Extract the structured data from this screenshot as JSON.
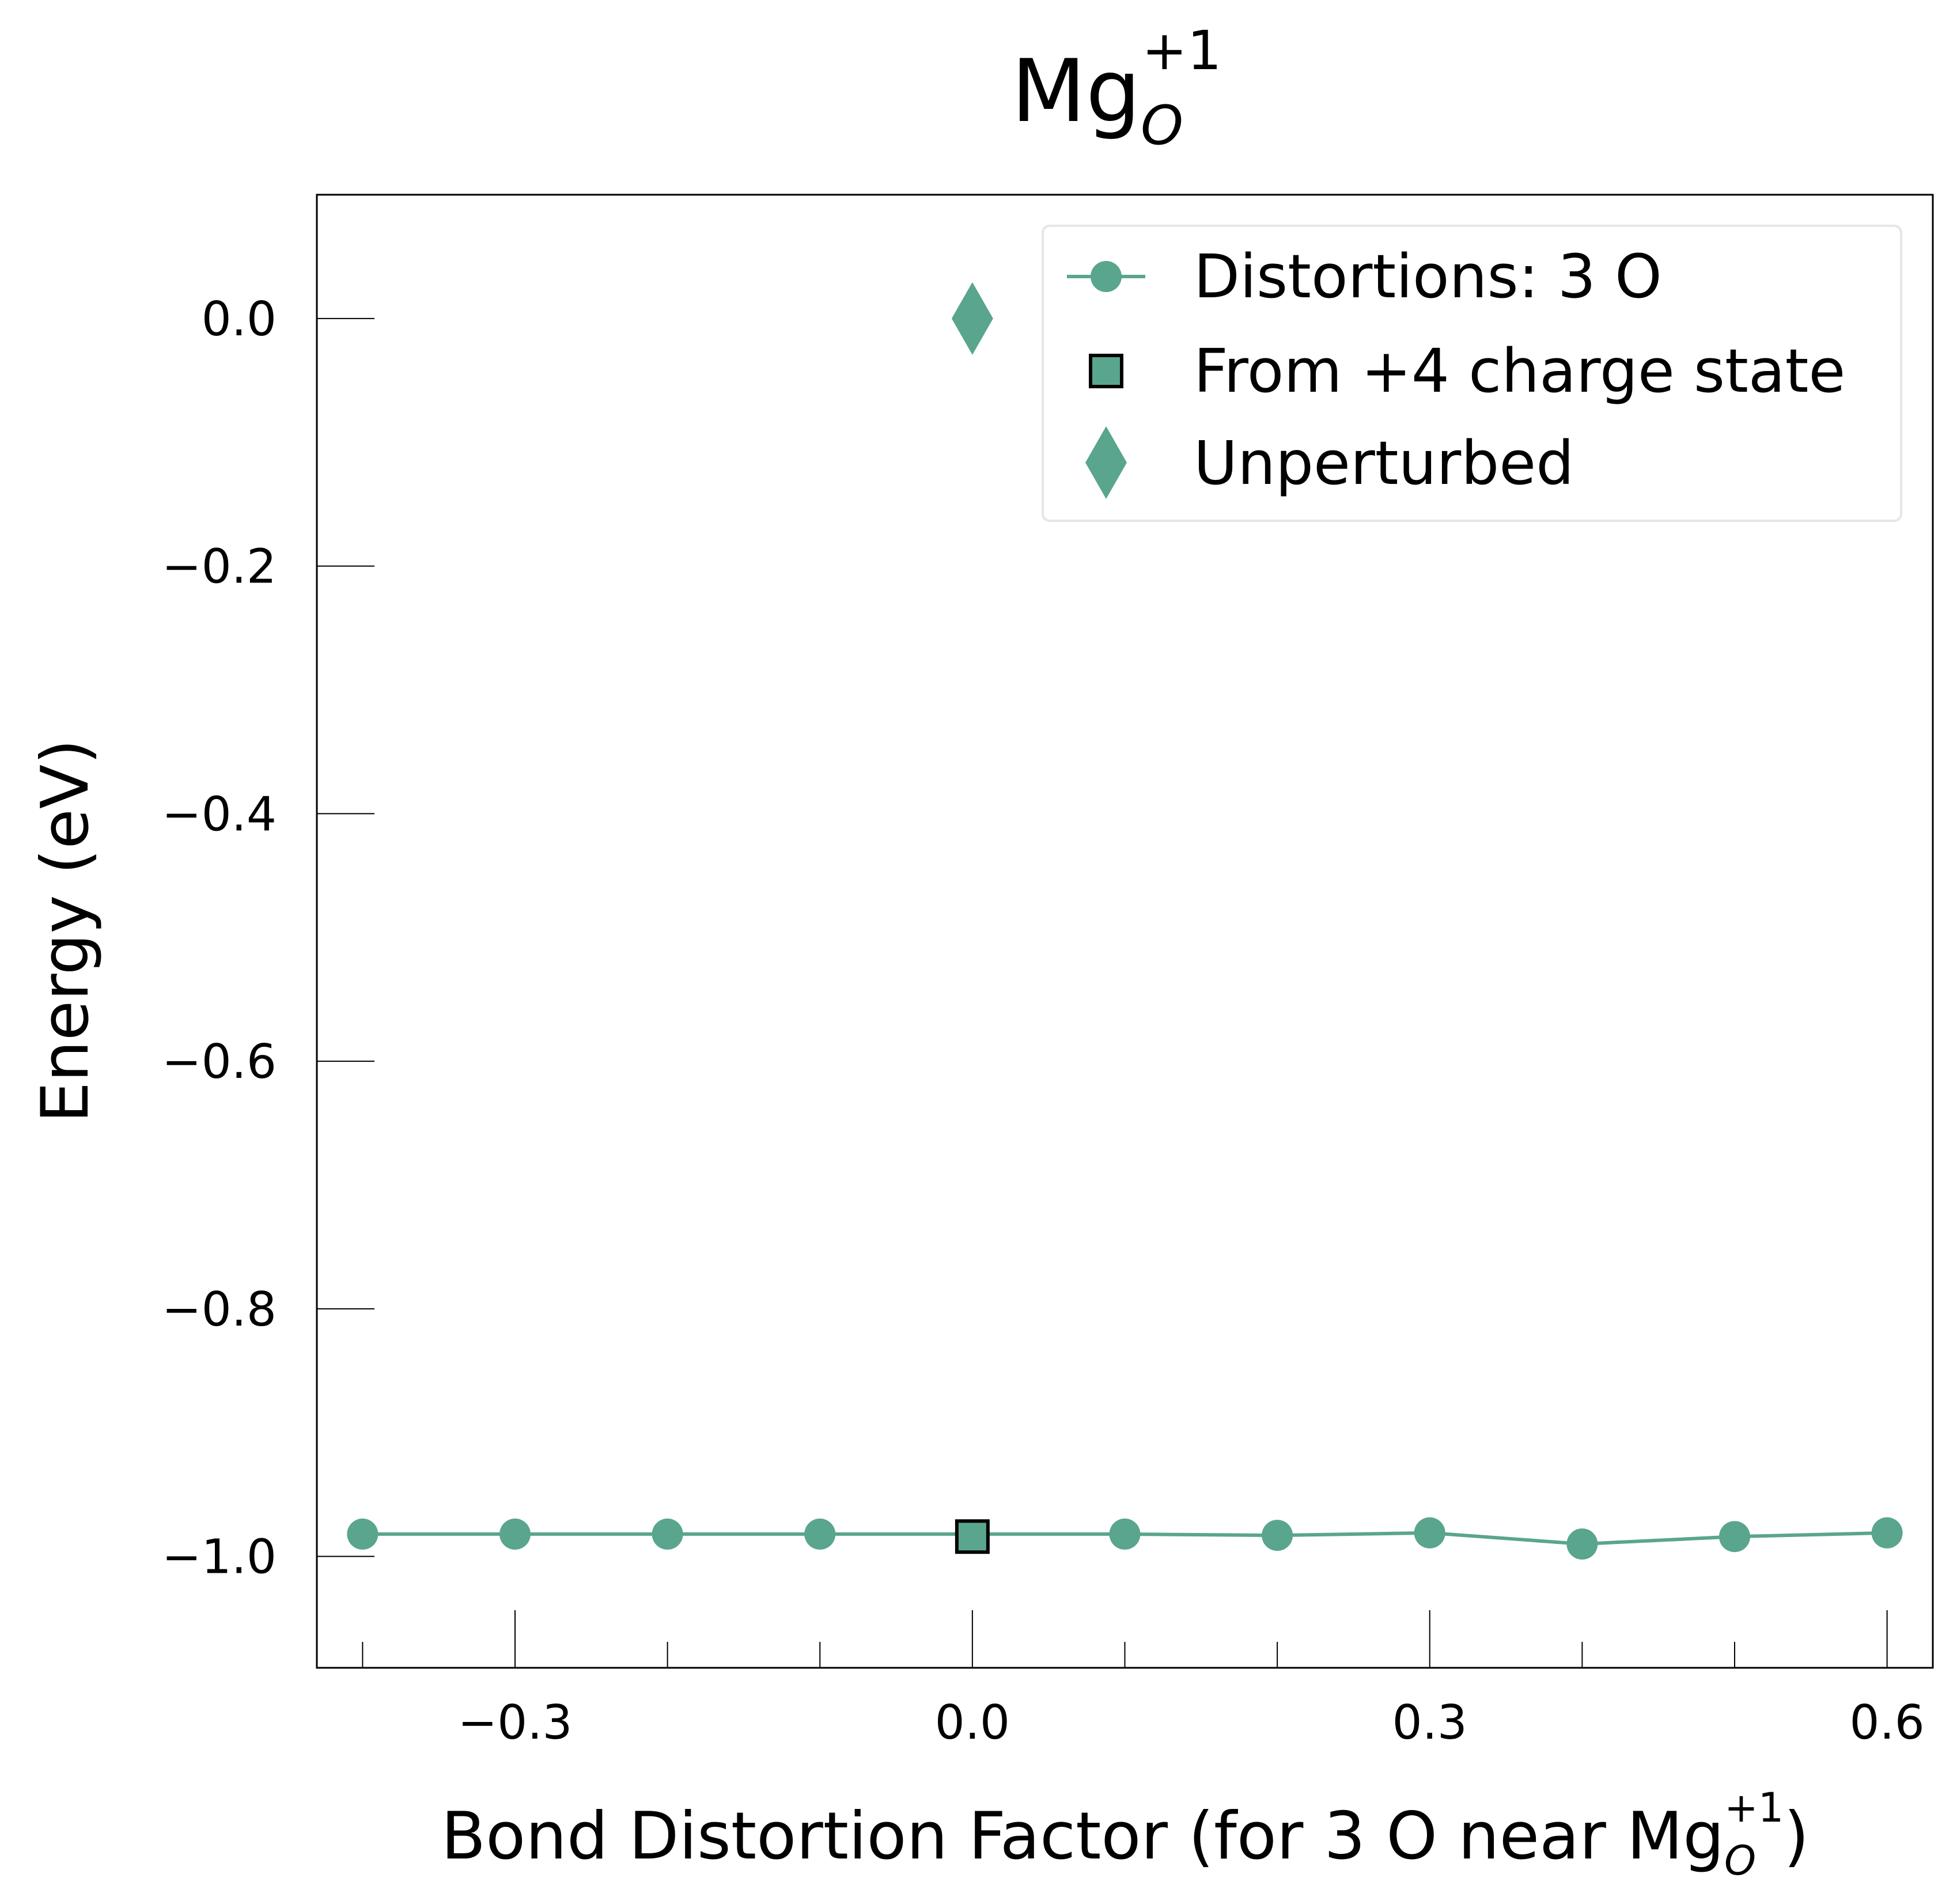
{
  "chart_data": {
    "type": "line",
    "title": {
      "base": "Mg",
      "sub": "O",
      "sup": "+1"
    },
    "xlabel": {
      "prefix": "Bond Distortion Factor (for 3 O near ",
      "base": "Mg",
      "sub": "O",
      "sup": "+1",
      "suffix": ")"
    },
    "ylabel": "Energy (eV)",
    "xlim": [
      -0.43,
      0.63
    ],
    "ylim": [
      -1.09,
      0.1
    ],
    "xticks": [
      -0.3,
      0.0,
      0.3,
      0.6
    ],
    "xtick_labels": [
      "−0.3",
      "0.0",
      "0.3",
      "0.6"
    ],
    "x_minor_ticks": [
      -0.4,
      -0.2,
      -0.1,
      0.1,
      0.2,
      0.4,
      0.5
    ],
    "yticks": [
      0.0,
      -0.2,
      -0.4,
      -0.6,
      -0.8,
      -1.0
    ],
    "ytick_labels": [
      "0.0",
      "−0.2",
      "−0.4",
      "−0.6",
      "−0.8",
      "−1.0"
    ],
    "grid": false,
    "legend_position": "top-right",
    "color": "#5aa58d",
    "series": [
      {
        "name": "Distortions: 3 O",
        "marker": "circle",
        "x": [
          -0.4,
          -0.3,
          -0.2,
          -0.1,
          0.1,
          0.2,
          0.3,
          0.4,
          0.5,
          0.6
        ],
        "y": [
          -0.982,
          -0.982,
          -0.982,
          -0.982,
          -0.982,
          -0.983,
          -0.981,
          -0.99,
          -0.984,
          -0.981
        ]
      },
      {
        "name": "From +4 charge state",
        "marker": "square",
        "x": [
          0.0
        ],
        "y": [
          -0.984
        ]
      },
      {
        "name": "Unperturbed",
        "marker": "diamond",
        "x": [
          0.0
        ],
        "y": [
          0.0
        ]
      }
    ]
  }
}
